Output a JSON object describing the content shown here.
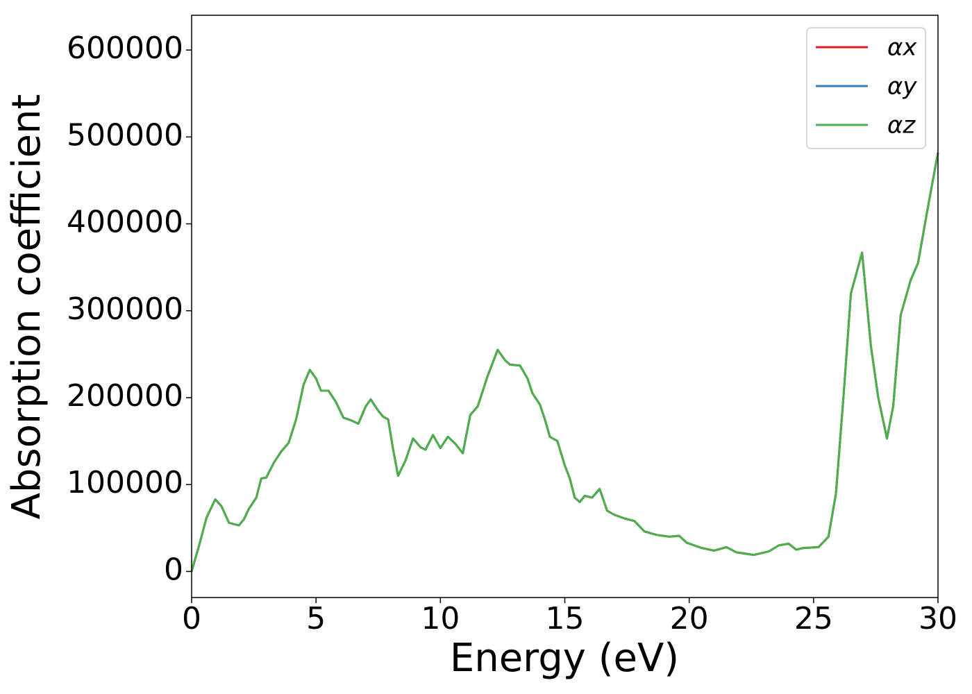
{
  "chart_data": {
    "type": "line",
    "xlabel": "Energy (eV)",
    "ylabel": "Absorption coefficient",
    "x": [
      0,
      0.3,
      0.6,
      0.95,
      1.2,
      1.5,
      1.9,
      2.1,
      2.3,
      2.6,
      2.8,
      3.0,
      3.3,
      3.6,
      3.9,
      4.2,
      4.5,
      4.75,
      5.0,
      5.2,
      5.5,
      5.8,
      6.1,
      6.4,
      6.7,
      7.0,
      7.2,
      7.5,
      7.7,
      7.9,
      8.1,
      8.3,
      8.6,
      8.9,
      9.2,
      9.4,
      9.7,
      10.0,
      10.3,
      10.6,
      10.9,
      11.2,
      11.5,
      11.9,
      12.3,
      12.6,
      12.8,
      13.2,
      13.5,
      13.7,
      14.0,
      14.2,
      14.4,
      14.7,
      15.0,
      15.2,
      15.4,
      15.6,
      15.8,
      16.1,
      16.4,
      16.7,
      17.0,
      17.4,
      17.8,
      18.2,
      18.7,
      19.2,
      19.6,
      19.9,
      20.5,
      21.0,
      21.5,
      21.9,
      22.6,
      23.2,
      23.6,
      24.0,
      24.3,
      24.6,
      25.2,
      25.6,
      25.9,
      26.2,
      26.5,
      26.95,
      27.3,
      27.6,
      27.95,
      28.2,
      28.5,
      28.9,
      29.2,
      29.6,
      30.0
    ],
    "series": [
      {
        "name": "αx",
        "color": "#e41a1c",
        "values": [
          0,
          30000,
          62000,
          83000,
          75000,
          56000,
          53000,
          60000,
          72000,
          85000,
          107000,
          108000,
          125000,
          138000,
          148000,
          175000,
          215000,
          232000,
          222000,
          208000,
          208000,
          195000,
          177000,
          174000,
          170000,
          190000,
          198000,
          185000,
          178000,
          175000,
          140000,
          110000,
          128000,
          153000,
          143000,
          140000,
          157000,
          142000,
          155000,
          147000,
          136000,
          180000,
          190000,
          225000,
          255000,
          243000,
          238000,
          237000,
          222000,
          205000,
          192000,
          175000,
          155000,
          150000,
          122000,
          107000,
          85000,
          80000,
          87000,
          85000,
          95000,
          70000,
          65000,
          61000,
          58000,
          46000,
          42000,
          40000,
          41000,
          33000,
          27000,
          24000,
          28000,
          22000,
          19000,
          23000,
          30000,
          32000,
          25000,
          27000,
          28000,
          40000,
          90000,
          200000,
          320000,
          367000,
          260000,
          200000,
          153000,
          190000,
          295000,
          335000,
          355000,
          420000,
          482000
        ]
      },
      {
        "name": "αy",
        "color": "#377eb8",
        "values": [
          0,
          30000,
          62000,
          83000,
          75000,
          56000,
          53000,
          60000,
          72000,
          85000,
          107000,
          108000,
          125000,
          138000,
          148000,
          175000,
          215000,
          232000,
          222000,
          208000,
          208000,
          195000,
          177000,
          174000,
          170000,
          190000,
          198000,
          185000,
          178000,
          175000,
          140000,
          110000,
          128000,
          153000,
          143000,
          140000,
          157000,
          142000,
          155000,
          147000,
          136000,
          180000,
          190000,
          225000,
          255000,
          243000,
          238000,
          237000,
          222000,
          205000,
          192000,
          175000,
          155000,
          150000,
          122000,
          107000,
          85000,
          80000,
          87000,
          85000,
          95000,
          70000,
          65000,
          61000,
          58000,
          46000,
          42000,
          40000,
          41000,
          33000,
          27000,
          24000,
          28000,
          22000,
          19000,
          23000,
          30000,
          32000,
          25000,
          27000,
          28000,
          40000,
          90000,
          200000,
          320000,
          367000,
          260000,
          200000,
          153000,
          190000,
          295000,
          335000,
          355000,
          420000,
          482000
        ]
      },
      {
        "name": "αz",
        "color": "#4daf4a",
        "values": [
          0,
          30000,
          62000,
          83000,
          75000,
          56000,
          53000,
          60000,
          72000,
          85000,
          107000,
          108000,
          125000,
          138000,
          148000,
          175000,
          215000,
          232000,
          222000,
          208000,
          208000,
          195000,
          177000,
          174000,
          170000,
          190000,
          198000,
          185000,
          178000,
          175000,
          140000,
          110000,
          128000,
          153000,
          143000,
          140000,
          157000,
          142000,
          155000,
          147000,
          136000,
          180000,
          190000,
          225000,
          255000,
          243000,
          238000,
          237000,
          222000,
          205000,
          192000,
          175000,
          155000,
          150000,
          122000,
          107000,
          85000,
          80000,
          87000,
          85000,
          95000,
          70000,
          65000,
          61000,
          58000,
          46000,
          42000,
          40000,
          41000,
          33000,
          27000,
          24000,
          28000,
          22000,
          19000,
          23000,
          30000,
          32000,
          25000,
          27000,
          28000,
          40000,
          90000,
          200000,
          320000,
          367000,
          260000,
          200000,
          153000,
          190000,
          295000,
          335000,
          355000,
          420000,
          482000
        ]
      }
    ],
    "xlim": [
      0,
      30
    ],
    "xticks": [
      0,
      5,
      10,
      15,
      20,
      25,
      30
    ],
    "ylim": [
      -30000,
      640000
    ],
    "yticks": [
      0,
      100000,
      200000,
      300000,
      400000,
      500000,
      600000
    ],
    "grid": false,
    "legend": "upper right"
  }
}
